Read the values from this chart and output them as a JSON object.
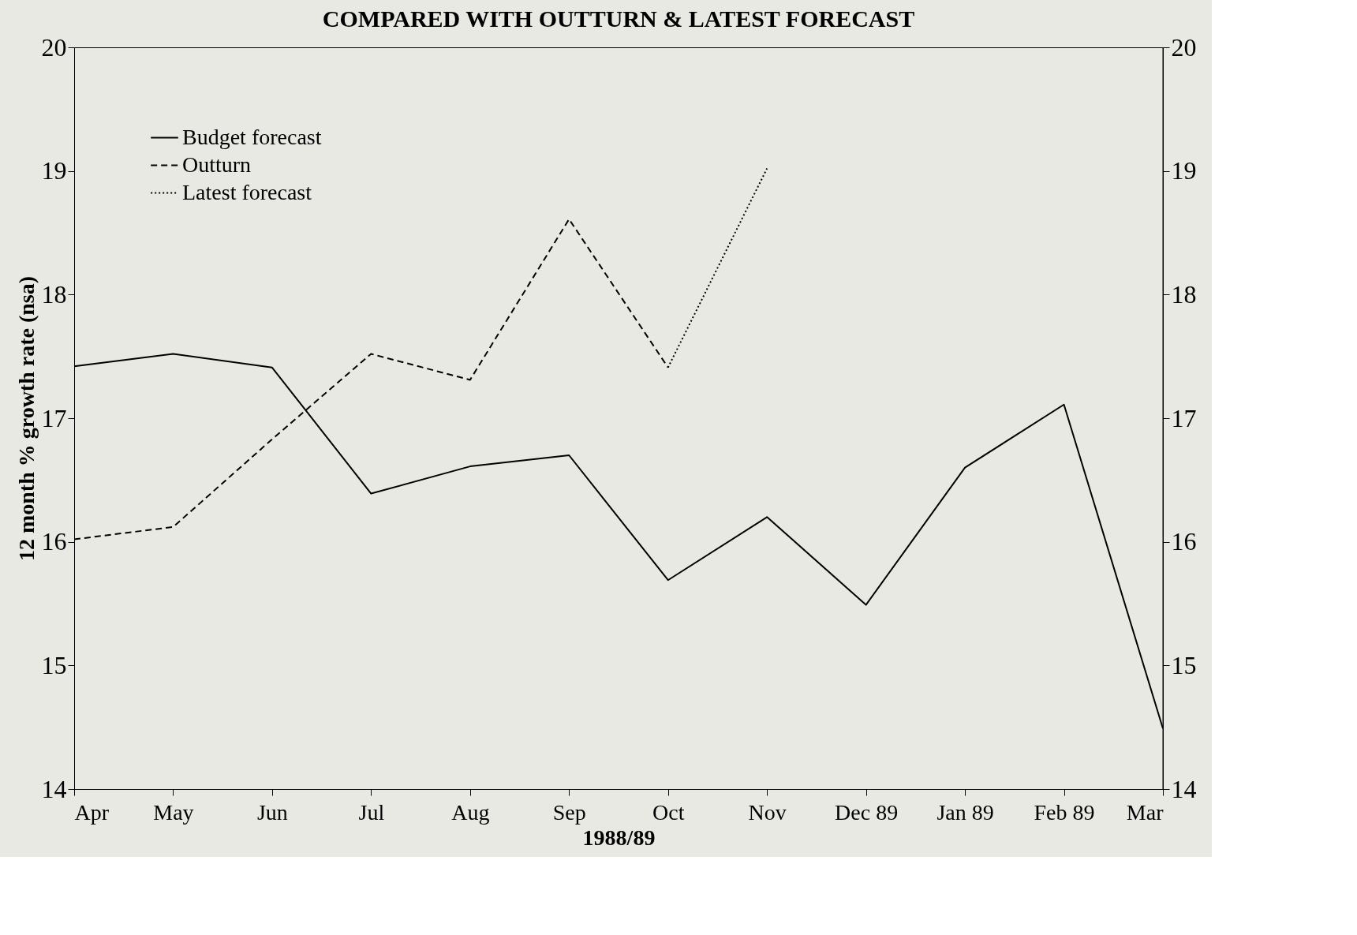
{
  "chart_data": {
    "type": "line",
    "title": "COMPARED WITH OUTTURN & LATEST FORECAST",
    "xlabel": "1988/89",
    "ylabel": "12 month % growth rate (nsa)",
    "categories": [
      "Apr",
      "May",
      "Jun",
      "Jul",
      "Aug",
      "Sep",
      "Oct",
      "Nov",
      "Dec 89",
      "Jan 89",
      "Feb 89",
      "Mar"
    ],
    "series": [
      {
        "name": "Budget forecast",
        "color": "#000000",
        "line_style": "solid",
        "values": [
          17.42,
          17.52,
          17.41,
          16.39,
          16.61,
          16.7,
          15.69,
          16.2,
          15.49,
          16.6,
          17.11,
          14.49
        ]
      },
      {
        "name": "Outturn",
        "color": "#000000",
        "line_style": "dashed",
        "values": [
          16.02,
          16.12,
          16.83,
          17.52,
          17.31,
          18.61,
          17.41,
          null,
          null,
          null,
          null,
          null
        ]
      },
      {
        "name": "Latest forecast",
        "color": "#000000",
        "line_style": "dotted",
        "values": [
          null,
          null,
          null,
          null,
          null,
          null,
          17.41,
          19.02,
          null,
          null,
          null,
          null
        ]
      }
    ],
    "ylim": [
      14,
      20
    ],
    "yticks": [
      14,
      15,
      16,
      17,
      18,
      19,
      20
    ],
    "y2lim": [
      14,
      20
    ],
    "y2ticks": [
      14,
      15,
      16,
      17,
      18,
      19,
      20
    ],
    "grid": false,
    "legend": "top left",
    "marker": "none"
  }
}
